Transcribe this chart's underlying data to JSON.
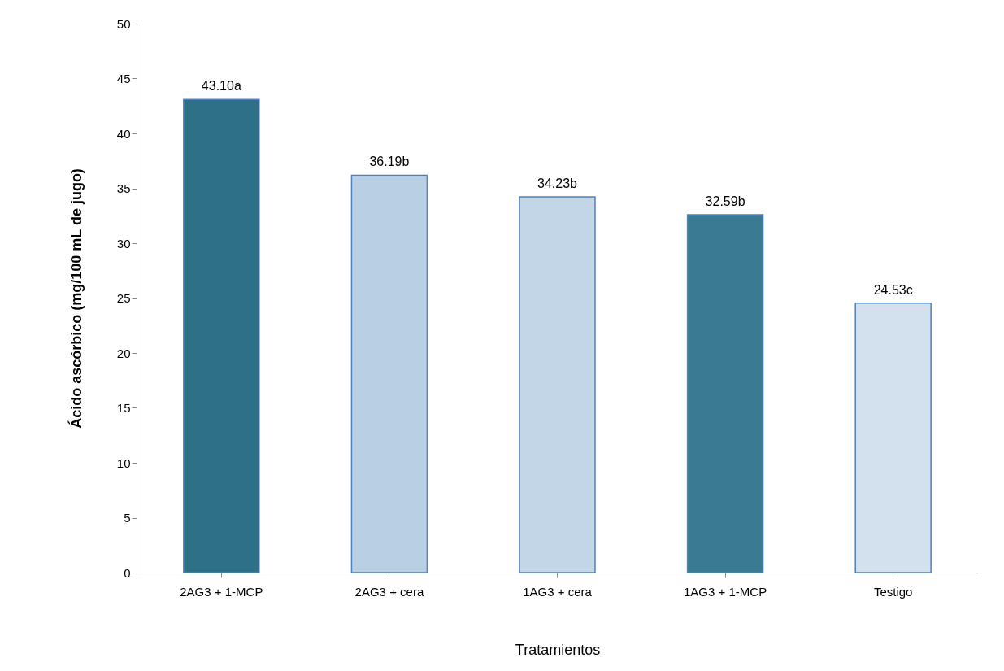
{
  "chart_data": {
    "type": "bar",
    "xlabel": "Tratamientos",
    "ylabel": "Ácido ascórbico (mg/100 mL de jugo)",
    "categories": [
      "2AG3 + 1-MCP",
      "2AG3 + cera",
      "1AG3 + cera",
      "1AG3 + 1-MCP",
      "Testigo"
    ],
    "values": [
      43.1,
      36.19,
      34.23,
      32.59,
      24.53
    ],
    "value_labels": [
      "43.10a",
      "36.19b",
      "34.23b",
      "32.59b",
      "24.53c"
    ],
    "colors": [
      "#2f7089",
      "#b9d0e4",
      "#c3d6e8",
      "#3a7a93",
      "#d3e1ee"
    ],
    "ylim": [
      0,
      50
    ],
    "yticks": [
      0,
      5,
      10,
      15,
      20,
      25,
      30,
      35,
      40,
      45,
      50
    ],
    "grid": false
  }
}
